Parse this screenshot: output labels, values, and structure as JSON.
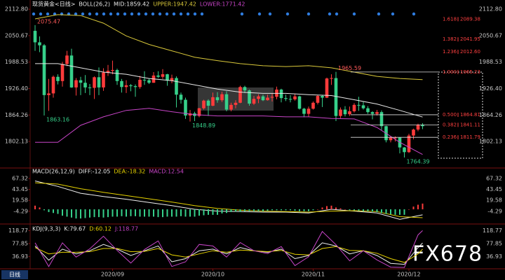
{
  "chart_data": [
    {
      "type": "candlestick",
      "title": "现货黄金<日线>",
      "indicator": "BOLL(26,2)",
      "categories": [
        null,
        null,
        null,
        null,
        null,
        null,
        null,
        null,
        null,
        null,
        null,
        null,
        null,
        null,
        null,
        null,
        null,
        "2020/09",
        null,
        null,
        null,
        null,
        null,
        null,
        null,
        null,
        null,
        null,
        null,
        null,
        null,
        null,
        null,
        null,
        null,
        null,
        null,
        null,
        null,
        "2020/10",
        null,
        null,
        null,
        null,
        null,
        null,
        null,
        null,
        null,
        null,
        null,
        null,
        null,
        null,
        null,
        null,
        null,
        null,
        null,
        null,
        null,
        "2020/11",
        null,
        null,
        null,
        null,
        null,
        null,
        null,
        null,
        null,
        null,
        null,
        null,
        null,
        null,
        null,
        null,
        null,
        null,
        null,
        null,
        "2020/12",
        null,
        null,
        null
      ],
      "open": [
        2062,
        2035,
        2028,
        1911,
        1915,
        1954,
        1944,
        1984,
        2004,
        1929,
        1946,
        1940,
        1929,
        1928,
        1953,
        1929,
        1964,
        1968,
        1970,
        1944,
        1930,
        1934,
        1932,
        1930,
        1947,
        1946,
        1940,
        1957,
        1954,
        1960,
        1945,
        1951,
        1912,
        1900,
        1863,
        1868,
        1862,
        1880,
        1898,
        1886,
        1906,
        1899,
        1913,
        1877,
        1888,
        1893,
        1930,
        1922,
        1891,
        1902,
        1908,
        1899,
        1905,
        1907,
        1924,
        1904,
        1902,
        1901,
        1908,
        1879,
        1867,
        1879,
        1893,
        1909,
        1905,
        1950,
        1951,
        1862,
        1877,
        1866,
        1873,
        1888,
        1887,
        1880,
        1871,
        1867,
        1871,
        1838,
        1805,
        1811,
        1811,
        1788,
        1777,
        1816,
        1830,
        1841
      ],
      "high": [
        2075.47,
        2049,
        2031,
        1949,
        1957,
        1960,
        1989,
        2015,
        2020,
        1951,
        1954,
        1958,
        1937,
        1955,
        1976,
        1974,
        1982,
        1992,
        1973,
        1949,
        1946,
        1937,
        1936,
        1956,
        1967,
        1950,
        1965,
        1967,
        1972,
        1961,
        1959,
        1955,
        1917,
        1905,
        1876,
        1872,
        1881,
        1900,
        1901,
        1917,
        1918,
        1919,
        1920,
        1893,
        1899,
        1933,
        1933,
        1924,
        1909,
        1913,
        1912,
        1912,
        1915,
        1931,
        1926,
        1912,
        1911,
        1913,
        1910,
        1881,
        1884,
        1896,
        1911,
        1911,
        1952,
        1960,
        1965.59,
        1882,
        1885,
        1884,
        1892,
        1907,
        1895,
        1885,
        1873,
        1876,
        1875,
        1839,
        1815,
        1814,
        1812,
        1789,
        1820,
        1832,
        1844,
        1845
      ],
      "low": [
        2015,
        2012,
        1863.16,
        1874,
        1905,
        1936,
        1931,
        1979,
        1928,
        1910,
        1911,
        1916,
        1911,
        1902,
        1911,
        1921,
        1956,
        1960,
        1935,
        1917,
        1916,
        1920,
        1907,
        1926,
        1935,
        1937,
        1940,
        1951,
        1949,
        1933,
        1939,
        1882,
        1891,
        1855,
        1848.89,
        1850,
        1859,
        1877,
        1862,
        1885,
        1893,
        1895,
        1873,
        1873,
        1880,
        1892,
        1916,
        1886,
        1888,
        1892,
        1897,
        1898,
        1896,
        1901,
        1894,
        1897,
        1894,
        1898,
        1877,
        1859,
        1860,
        1877,
        1889,
        1883,
        1904,
        1935,
        1850,
        1857,
        1861,
        1862,
        1870,
        1874,
        1877,
        1867,
        1854,
        1863,
        1829,
        1800,
        1800,
        1802,
        1774,
        1764.39,
        1775,
        1807,
        1826,
        1831
      ],
      "close": [
        2035,
        2028,
        1911,
        1915,
        1954,
        1944,
        1984,
        2004,
        1929,
        1946,
        1940,
        1929,
        1928,
        1953,
        1929,
        1964,
        1968,
        1970,
        1944,
        1930,
        1934,
        1932,
        1930,
        1947,
        1946,
        1940,
        1957,
        1954,
        1960,
        1945,
        1951,
        1912,
        1900,
        1863,
        1868,
        1862,
        1880,
        1898,
        1886,
        1906,
        1899,
        1913,
        1877,
        1888,
        1893,
        1930,
        1922,
        1891,
        1902,
        1908,
        1899,
        1905,
        1907,
        1924,
        1904,
        1902,
        1901,
        1908,
        1879,
        1867,
        1879,
        1893,
        1909,
        1905,
        1950,
        1951,
        1862,
        1877,
        1866,
        1873,
        1888,
        1887,
        1880,
        1871,
        1867,
        1871,
        1838,
        1805,
        1811,
        1811,
        1788,
        1777,
        1816,
        1830,
        1841,
        1838
      ],
      "up_color": "#ff3b3b",
      "down_color": "#36d08a",
      "ylim": [
        1743,
        2118
      ],
      "yticks": [
        {
          "value": 2112.8,
          "label": "2112.80"
        },
        2050.67,
        1988.53,
        {
          "value": 1926.4,
          "label": "1926.40"
        },
        1864.26,
        1802.13
      ],
      "series": [
        {
          "name": "MID:1859.42",
          "color": "#e8e8e8",
          "x": [
            0,
            5,
            10,
            15,
            20,
            25,
            30,
            35,
            40,
            45,
            50,
            55,
            60,
            65,
            70,
            75,
            80,
            85
          ],
          "values": [
            1985,
            1985,
            1975,
            1965,
            1960,
            1950,
            1945,
            1935,
            1925,
            1918,
            1915,
            1915,
            1912,
            1910,
            1900,
            1890,
            1875,
            1859.42
          ]
        },
        {
          "name": "UPPER:1947.42",
          "color": "#d9c83a",
          "x": [
            0,
            5,
            10,
            15,
            20,
            25,
            30,
            35,
            40,
            45,
            50,
            55,
            60,
            65,
            70,
            75,
            80,
            85
          ],
          "values": [
            2090,
            2100,
            2098,
            2080,
            2050,
            2030,
            2015,
            2000,
            1992,
            1985,
            1980,
            1978,
            1980,
            1975,
            1965,
            1955,
            1950,
            1947.42
          ]
        },
        {
          "name": "LOWER:1771.42",
          "color": "#c845c8",
          "x": [
            0,
            5,
            10,
            15,
            20,
            25,
            30,
            35,
            40,
            45,
            50,
            55,
            60,
            65,
            70,
            75,
            80,
            85
          ],
          "values": [
            1800,
            1800,
            1840,
            1860,
            1875,
            1880,
            1872,
            1865,
            1862,
            1862,
            1862,
            1860,
            1860,
            1856,
            1855,
            1835,
            1800,
            1771.42
          ]
        }
      ],
      "fibonacci": [
        {
          "ratio": "1.618",
          "level": 2089.38
        },
        {
          "ratio": "1.382",
          "level": 2041.95
        },
        {
          "ratio": "1.236",
          "level": {
            "value": 2012.6,
            "label": "2012.60"
          }
        },
        {
          "ratio": "1.000",
          "level": 1965.23
        },
        {
          "ratio": "0.500",
          "level": 1864.81
        },
        {
          "ratio": "0.382",
          "level": 1841.11
        },
        {
          "ratio": "0.236",
          "level": 1811.79
        }
      ],
      "fib_color": "#ff4040"
    },
    {
      "type": "line",
      "title": "MACD(26,12,9)",
      "ylim": [
        -29,
        78
      ],
      "yticks": [
        67.32,
        43.45,
        19.58,
        -4.29
      ],
      "series": [
        {
          "name": "DIFF:-12.05",
          "color": "#f0f0f0",
          "x": [
            0,
            5,
            10,
            15,
            20,
            25,
            30,
            35,
            40,
            45,
            50,
            55,
            60,
            65,
            70,
            75,
            80,
            85
          ],
          "values": [
            62,
            50,
            35,
            28,
            22,
            15,
            8,
            0,
            -4,
            -5,
            -6,
            -6,
            -8,
            0,
            -4,
            -8,
            -22,
            -12.05
          ]
        },
        {
          "name": "DEA:-18.32",
          "color": "#e6d200",
          "x": [
            0,
            5,
            10,
            15,
            20,
            25,
            30,
            35,
            40,
            45,
            50,
            55,
            60,
            65,
            70,
            75,
            80,
            85
          ],
          "values": [
            58,
            55,
            45,
            37,
            30,
            23,
            16,
            8,
            2,
            -2,
            -4,
            -5,
            -6,
            -4,
            -3,
            -5,
            -16,
            -18.32
          ]
        },
        {
          "name": "MACD:12.54",
          "type": "bar",
          "color": "#c845c8",
          "up_color": "#ff3b3b",
          "down_color": "#36d08a",
          "values": [
            8,
            4,
            -2,
            -6,
            -8,
            -10,
            -14,
            -16,
            -18,
            -20,
            -20,
            -19,
            -18,
            -17,
            -17,
            -18,
            -17,
            -16,
            -16,
            -15,
            -16,
            -15,
            -15,
            -16,
            -16,
            -16,
            -16,
            -17,
            -17,
            -16,
            -16,
            -16,
            -15,
            -16,
            -16,
            -16,
            -14,
            -13,
            -12,
            -12,
            -12,
            -9,
            -8,
            -6,
            -5,
            -6,
            -4,
            -4,
            -4,
            -4,
            -4,
            -3,
            -2,
            -2,
            -2,
            -2,
            -2,
            -3,
            -4,
            -4,
            -4,
            -2,
            0,
            4,
            7,
            8,
            4,
            2,
            0,
            -2,
            -2,
            -3,
            -4,
            -4,
            -5,
            -6,
            -8,
            -10,
            -11,
            -12,
            -12,
            -12,
            0,
            6,
            10,
            12.54
          ]
        }
      ]
    },
    {
      "type": "line",
      "title": "KDJ(9,3,3)",
      "ylim": [
        0,
        133
      ],
      "yticks": [
        118.77,
        77.85,
        36.93
      ],
      "series": [
        {
          "name": "K:79.67",
          "color": "#f0f0f0",
          "x": [
            0,
            3,
            6,
            9,
            12,
            15,
            18,
            21,
            24,
            27,
            30,
            33,
            36,
            39,
            42,
            45,
            48,
            51,
            54,
            57,
            60,
            63,
            66,
            69,
            72,
            75,
            78,
            81,
            84,
            85
          ],
          "values": [
            70,
            25,
            60,
            45,
            55,
            75,
            60,
            40,
            55,
            70,
            20,
            30,
            55,
            60,
            45,
            65,
            55,
            50,
            60,
            30,
            40,
            80,
            70,
            45,
            55,
            40,
            15,
            12,
            65,
            79.67
          ]
        },
        {
          "name": "D:60.12",
          "color": "#e6d200",
          "x": [
            0,
            3,
            6,
            9,
            12,
            15,
            18,
            21,
            24,
            27,
            30,
            33,
            36,
            39,
            42,
            45,
            48,
            51,
            54,
            57,
            60,
            63,
            66,
            69,
            72,
            75,
            78,
            81,
            84,
            85
          ],
          "values": [
            65,
            45,
            50,
            50,
            52,
            62,
            62,
            52,
            53,
            62,
            42,
            35,
            45,
            55,
            50,
            57,
            55,
            52,
            56,
            44,
            42,
            62,
            68,
            56,
            55,
            47,
            30,
            18,
            45,
            60.12
          ]
        },
        {
          "name": "J:118.77",
          "color": "#c845c8",
          "x": [
            0,
            3,
            6,
            9,
            12,
            15,
            18,
            21,
            24,
            27,
            30,
            33,
            36,
            39,
            42,
            45,
            48,
            51,
            54,
            57,
            60,
            63,
            66,
            69,
            72,
            75,
            78,
            81,
            84,
            85
          ],
          "values": [
            80,
            5,
            80,
            35,
            61,
            101,
            56,
            16,
            59,
            86,
            5,
            20,
            75,
            70,
            35,
            81,
            55,
            46,
            68,
            8,
            36,
            116,
            74,
            23,
            55,
            26,
            3,
            2,
            105,
            118.77
          ]
        }
      ]
    }
  ],
  "period_button": "日线",
  "watermark": "FX678"
}
